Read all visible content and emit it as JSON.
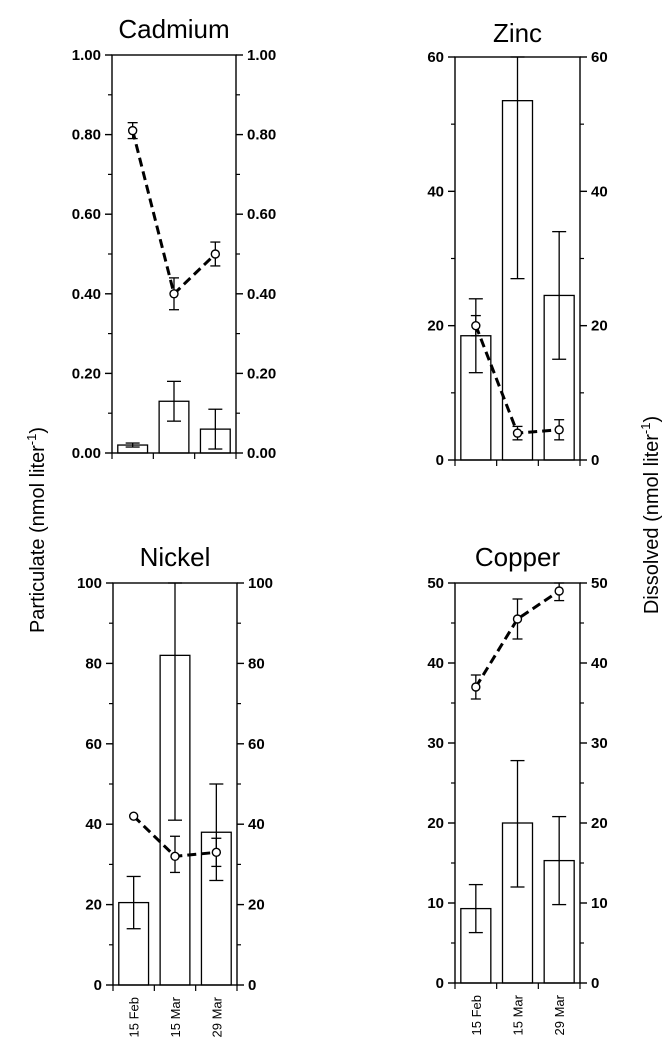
{
  "ylabel_left": "Particulate (nmol liter",
  "ylabel_right": "Dissolved (nmol liter",
  "ylabel_superscript": "-1",
  "ylabel_close": ")",
  "chart_data": [
    {
      "type": "bar",
      "title": "Cadmium",
      "categories": [
        "15 Feb",
        "15 Mar",
        "29 Mar"
      ],
      "ylim": [
        0,
        1
      ],
      "yticks": [
        "0.00",
        "0.20",
        "0.40",
        "0.60",
        "0.80",
        "1.00"
      ],
      "series": [
        {
          "name": "Particulate",
          "kind": "bar",
          "values": [
            0.02,
            0.13,
            0.06
          ],
          "err_low": [
            0.015,
            0.08,
            0.01
          ],
          "err_high": [
            0.025,
            0.18,
            0.11
          ]
        },
        {
          "name": "Dissolved",
          "kind": "line",
          "values": [
            0.81,
            0.4,
            0.5
          ],
          "err_low": [
            0.79,
            0.36,
            0.47
          ],
          "err_high": [
            0.83,
            0.44,
            0.53
          ]
        }
      ]
    },
    {
      "type": "bar",
      "title": "Zinc",
      "categories": [
        "15 Feb",
        "15 Mar",
        "29 Mar"
      ],
      "ylim": [
        0,
        60
      ],
      "yticks": [
        "0",
        "20",
        "40",
        "60"
      ],
      "series": [
        {
          "name": "Particulate",
          "kind": "bar",
          "values": [
            18.5,
            53.5,
            24.5
          ],
          "err_low": [
            13,
            27,
            15
          ],
          "err_high": [
            24,
            60,
            34
          ]
        },
        {
          "name": "Dissolved",
          "kind": "line",
          "values": [
            20,
            4,
            4.5
          ],
          "err_low": [
            18.5,
            3,
            3
          ],
          "err_high": [
            21.5,
            5,
            6
          ]
        }
      ]
    },
    {
      "type": "bar",
      "title": "Nickel",
      "categories": [
        "15 Feb",
        "15 Mar",
        "29 Mar"
      ],
      "ylim": [
        0,
        100
      ],
      "yticks": [
        "0",
        "20",
        "40",
        "60",
        "80",
        "100"
      ],
      "series": [
        {
          "name": "Particulate",
          "kind": "bar",
          "values": [
            20.5,
            82,
            38
          ],
          "err_low": [
            14,
            41,
            26
          ],
          "err_high": [
            27,
            100,
            50
          ]
        },
        {
          "name": "Dissolved",
          "kind": "line",
          "values": [
            42,
            32,
            33
          ],
          "err_low": [
            42,
            28,
            29.5
          ],
          "err_high": [
            42,
            37,
            36.5
          ]
        }
      ]
    },
    {
      "type": "bar",
      "title": "Copper",
      "categories": [
        "15 Feb",
        "15 Mar",
        "29 Mar"
      ],
      "ylim": [
        0,
        50
      ],
      "yticks": [
        "0",
        "10",
        "20",
        "30",
        "40",
        "50"
      ],
      "series": [
        {
          "name": "Particulate",
          "kind": "bar",
          "values": [
            9.3,
            20,
            15.3
          ],
          "err_low": [
            6.3,
            12,
            9.8
          ],
          "err_high": [
            12.3,
            27.8,
            20.8
          ]
        },
        {
          "name": "Dissolved",
          "kind": "line",
          "values": [
            37,
            45.5,
            49
          ],
          "err_low": [
            35.5,
            43,
            47.8
          ],
          "err_high": [
            38.5,
            48,
            50
          ]
        }
      ]
    }
  ]
}
